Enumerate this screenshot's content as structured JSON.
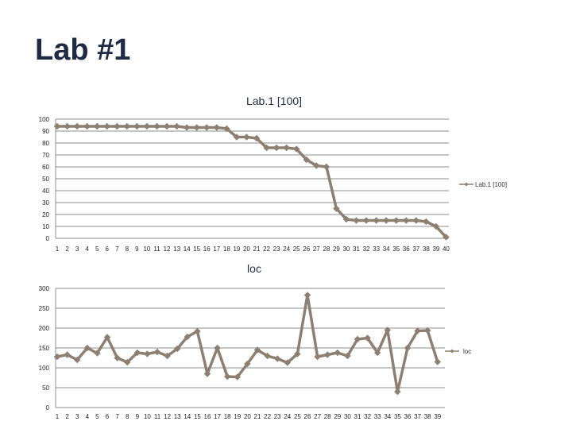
{
  "slide": {
    "title": "Lab #1"
  },
  "colors": {
    "series": "#8d7f72",
    "grid": "#8c8c8c",
    "title": "#1f2a44"
  },
  "chart_data": [
    {
      "type": "line",
      "title": "Lab.1 [100]",
      "categories": [
        "1",
        "2",
        "3",
        "4",
        "5",
        "6",
        "7",
        "8",
        "9",
        "10",
        "11",
        "12",
        "13",
        "14",
        "15",
        "16",
        "17",
        "18",
        "19",
        "20",
        "21",
        "22",
        "23",
        "24",
        "25",
        "26",
        "27",
        "28",
        "29",
        "30",
        "31",
        "32",
        "33",
        "34",
        "35",
        "36",
        "37",
        "38",
        "39",
        "40"
      ],
      "y_ticks": [
        "0",
        "10",
        "20",
        "30",
        "40",
        "50",
        "60",
        "70",
        "80",
        "90",
        "100"
      ],
      "ylim": [
        0,
        100
      ],
      "grid": true,
      "legend": "right",
      "series": [
        {
          "name": "Lab.1 [100]",
          "values": [
            94,
            94,
            94,
            94,
            94,
            94,
            94,
            94,
            94,
            94,
            94,
            94,
            94,
            93,
            93,
            93,
            93,
            92,
            85,
            85,
            84,
            76,
            76,
            76,
            75,
            66,
            61,
            60,
            25,
            16,
            15,
            15,
            15,
            15,
            15,
            15,
            15,
            14,
            10,
            1
          ]
        }
      ]
    },
    {
      "type": "line",
      "title": "loc",
      "categories": [
        "1",
        "2",
        "3",
        "4",
        "5",
        "6",
        "7",
        "8",
        "9",
        "10",
        "11",
        "12",
        "13",
        "14",
        "15",
        "16",
        "17",
        "18",
        "19",
        "20",
        "21",
        "22",
        "23",
        "24",
        "25",
        "26",
        "27",
        "28",
        "29",
        "30",
        "31",
        "32",
        "33",
        "34",
        "35",
        "36",
        "37",
        "38",
        "39"
      ],
      "y_ticks": [
        "0",
        "50",
        "100",
        "150",
        "200",
        "250",
        "300"
      ],
      "ylim": [
        0,
        300
      ],
      "grid": true,
      "legend": "right",
      "series": [
        {
          "name": "loc",
          "values": [
            128,
            133,
            120,
            150,
            137,
            177,
            125,
            114,
            138,
            135,
            140,
            130,
            148,
            178,
            192,
            85,
            150,
            78,
            77,
            110,
            145,
            130,
            123,
            113,
            135,
            283,
            128,
            133,
            138,
            130,
            172,
            175,
            138,
            195,
            40,
            150,
            193,
            194,
            115
          ]
        }
      ]
    }
  ]
}
